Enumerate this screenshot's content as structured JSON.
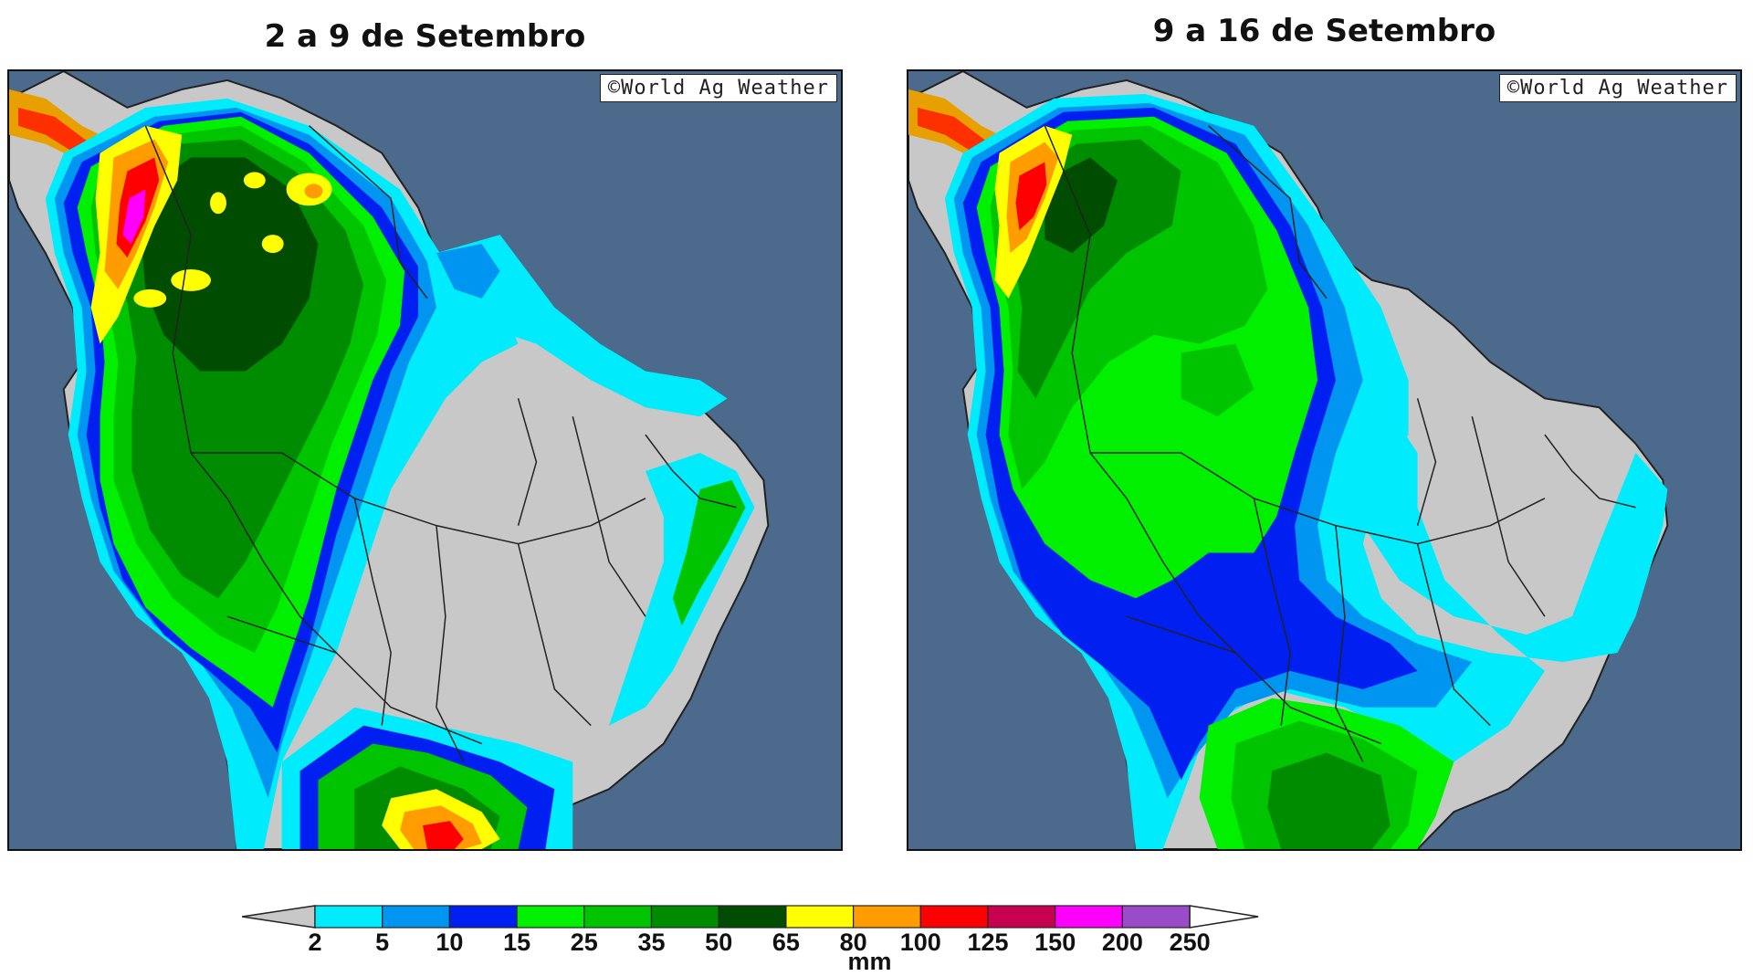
{
  "panels": [
    {
      "title": "2 a 9 de Setembro",
      "credit": "©World Ag Weather"
    },
    {
      "title": "9 a 16 de Setembro",
      "credit": "©World Ag Weather"
    }
  ],
  "legend": {
    "unit": "mm",
    "tick_labels": [
      "2",
      "5",
      "10",
      "15",
      "25",
      "35",
      "50",
      "65",
      "80",
      "100",
      "125",
      "150",
      "200",
      "250"
    ],
    "colors": [
      "#00ecfc",
      "#0095f0",
      "#0020f2",
      "#00f000",
      "#00c400",
      "#008c00",
      "#004c00",
      "#ffff00",
      "#ff9c00",
      "#ff0000",
      "#c80050",
      "#ff00ff",
      "#9a4cc8"
    ],
    "below_range_color": "#c8c8c8",
    "above_range_color": "#ffffff"
  },
  "colors": {
    "ocean": "#4b6a8c",
    "dry_land": "#c8c8c8",
    "borders": "#222222"
  }
}
